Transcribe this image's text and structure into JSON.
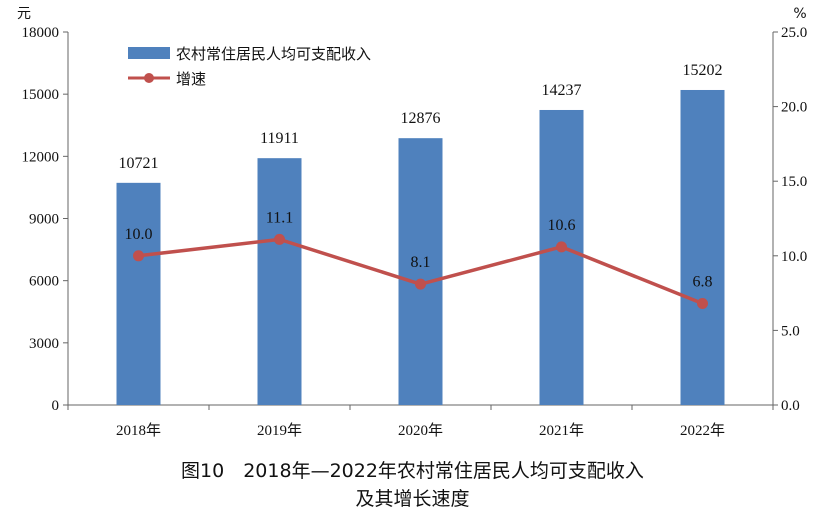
{
  "caption": {
    "line1": "图10　2018年—2022年农村常住居民人均可支配收入",
    "line2": "及其增长速度"
  },
  "colors": {
    "bar": "#4f81bd",
    "line": "#c0504d",
    "axis": "#666666"
  },
  "chart_data": {
    "type": "bar",
    "categories": [
      "2018年",
      "2019年",
      "2020年",
      "2021年",
      "2022年"
    ],
    "series": [
      {
        "name": "农村常住居民人均可支配收入",
        "type": "bar",
        "axis": "left",
        "values": [
          10721,
          11911,
          12876,
          14237,
          15202
        ],
        "labels": [
          "10721",
          "11911",
          "12876",
          "14237",
          "15202"
        ]
      },
      {
        "name": "增速",
        "type": "line",
        "axis": "right",
        "values": [
          10.0,
          11.1,
          8.1,
          10.6,
          6.8
        ],
        "labels": [
          "10.0",
          "11.1",
          "8.1",
          "10.6",
          "6.8"
        ]
      }
    ],
    "y_left": {
      "unit": "元",
      "range": [
        0,
        18000
      ],
      "ticks": [
        0,
        3000,
        6000,
        9000,
        12000,
        15000,
        18000
      ],
      "tick_labels": [
        "0",
        "3000",
        "6000",
        "9000",
        "12000",
        "15000",
        "18000"
      ]
    },
    "y_right": {
      "unit": "%",
      "range": [
        0,
        25
      ],
      "ticks": [
        0,
        5,
        10,
        15,
        20,
        25
      ],
      "tick_labels": [
        "0.0",
        "5.0",
        "10.0",
        "15.0",
        "20.0",
        "25.0"
      ]
    },
    "legend": {
      "position": "top-left"
    },
    "grid": false
  }
}
